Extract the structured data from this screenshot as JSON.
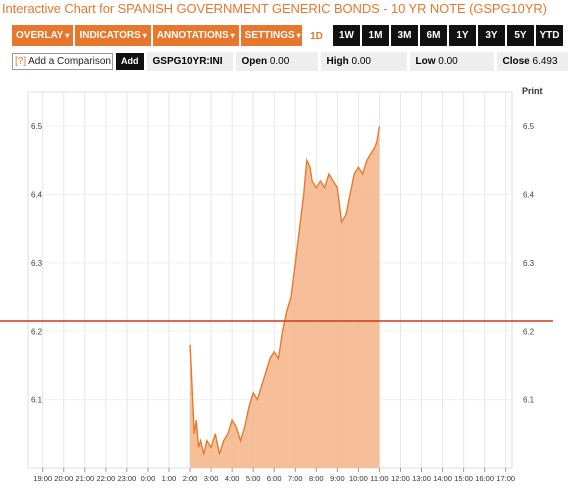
{
  "title": "Interactive Chart for SPANISH GOVERNMENT GENERIC BONDS - 10 YR NOTE (GSPG10YR)",
  "menu": [
    {
      "label": "OVERLAY",
      "caret": "▾"
    },
    {
      "label": "INDICATORS",
      "caret": "▾"
    },
    {
      "label": "ANNOTATIONS",
      "caret": "▾"
    },
    {
      "label": "SETTINGS",
      "caret": "▾"
    }
  ],
  "ranges": [
    "1D",
    "1W",
    "1M",
    "3M",
    "6M",
    "1Y",
    "3Y",
    "5Y",
    "YTD"
  ],
  "active_range": "1D",
  "compare": {
    "help": "[?]",
    "label": "Add a Comparison",
    "add": "Add"
  },
  "ticker": "GSPG10YR:INI",
  "open": {
    "label": "Open",
    "value": "0.00"
  },
  "high": {
    "label": "High",
    "value": "0.00"
  },
  "low": {
    "label": "Low",
    "value": "0.00"
  },
  "close": {
    "label": "Close",
    "value": "6.493"
  },
  "print": "Print",
  "colors": {
    "accent": "#e8772e",
    "fill": "#f4b488",
    "line": "#e57b2e",
    "ref": "#c93a1f"
  },
  "chart_data": {
    "type": "area",
    "x_ticks": [
      "19:00",
      "20:00",
      "21:00",
      "22:00",
      "23:00",
      "0:00",
      "1:00",
      "2:00",
      "3:00",
      "4:00",
      "5:00",
      "6:00",
      "7:00",
      "8:00",
      "9:00",
      "10:00",
      "11:00",
      "12:00",
      "13:00",
      "14:00",
      "15:00",
      "16:00",
      "17:00"
    ],
    "y_ticks": [
      "6.1",
      "6.2",
      "6.3",
      "6.4",
      "6.5"
    ],
    "ylim": [
      6.0,
      6.55
    ],
    "reference_line": 6.215,
    "series": [
      {
        "values": [
          [
            2.0,
            6.18
          ],
          [
            2.05,
            6.15
          ],
          [
            2.12,
            6.1
          ],
          [
            2.2,
            6.05
          ],
          [
            2.3,
            6.07
          ],
          [
            2.4,
            6.03
          ],
          [
            2.5,
            6.04
          ],
          [
            2.65,
            6.02
          ],
          [
            2.8,
            6.04
          ],
          [
            3.0,
            6.03
          ],
          [
            3.2,
            6.05
          ],
          [
            3.4,
            6.02
          ],
          [
            3.6,
            6.04
          ],
          [
            3.8,
            6.05
          ],
          [
            4.0,
            6.07
          ],
          [
            4.2,
            6.06
          ],
          [
            4.4,
            6.04
          ],
          [
            4.6,
            6.06
          ],
          [
            4.8,
            6.09
          ],
          [
            5.0,
            6.11
          ],
          [
            5.2,
            6.1
          ],
          [
            5.4,
            6.12
          ],
          [
            5.6,
            6.14
          ],
          [
            5.8,
            6.16
          ],
          [
            6.0,
            6.17
          ],
          [
            6.2,
            6.16
          ],
          [
            6.4,
            6.2
          ],
          [
            6.6,
            6.23
          ],
          [
            6.8,
            6.25
          ],
          [
            7.0,
            6.3
          ],
          [
            7.2,
            6.35
          ],
          [
            7.4,
            6.4
          ],
          [
            7.55,
            6.45
          ],
          [
            7.7,
            6.44
          ],
          [
            7.8,
            6.42
          ],
          [
            8.0,
            6.41
          ],
          [
            8.2,
            6.42
          ],
          [
            8.4,
            6.41
          ],
          [
            8.6,
            6.43
          ],
          [
            8.8,
            6.42
          ],
          [
            9.0,
            6.41
          ],
          [
            9.2,
            6.36
          ],
          [
            9.4,
            6.37
          ],
          [
            9.6,
            6.4
          ],
          [
            9.8,
            6.43
          ],
          [
            10.0,
            6.44
          ],
          [
            10.2,
            6.43
          ],
          [
            10.4,
            6.45
          ],
          [
            10.6,
            6.46
          ],
          [
            10.8,
            6.47
          ],
          [
            10.9,
            6.48
          ],
          [
            11.0,
            6.5
          ]
        ]
      }
    ]
  }
}
